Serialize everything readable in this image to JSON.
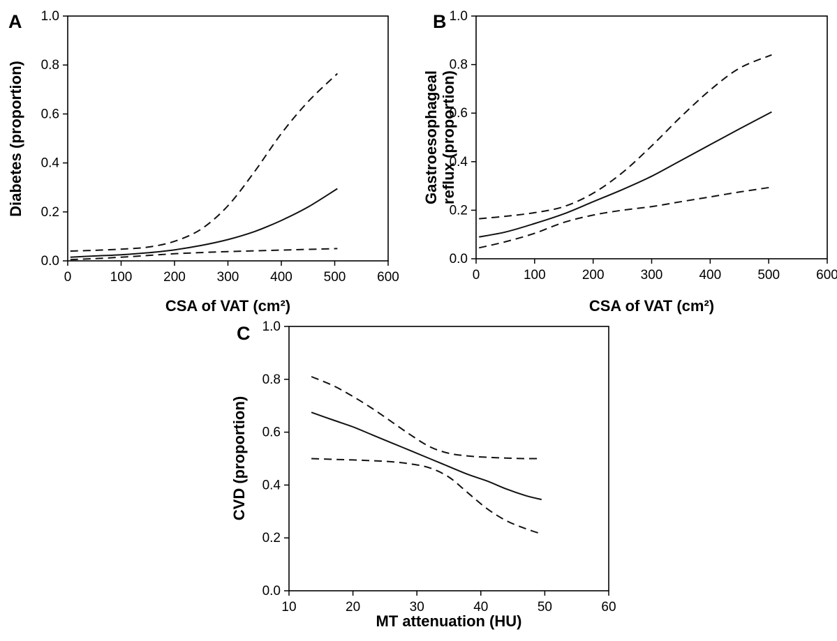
{
  "chart_data": [
    {
      "type": "line",
      "panel": "A",
      "xlabel": "CSA of VAT (cm²)",
      "ylabel": "Diabetes (proportion)",
      "xlim": [
        0,
        600
      ],
      "ylim": [
        0,
        1.0
      ],
      "xticks": [
        0,
        100,
        200,
        300,
        400,
        500,
        600
      ],
      "yticks": [
        0.0,
        0.2,
        0.4,
        0.6,
        0.8,
        1.0
      ],
      "x": [
        5,
        50,
        100,
        150,
        200,
        250,
        300,
        350,
        400,
        450,
        505
      ],
      "series": [
        {
          "style": "solid",
          "values": [
            0.015,
            0.02,
            0.025,
            0.033,
            0.045,
            0.063,
            0.087,
            0.12,
            0.165,
            0.22,
            0.295
          ]
        },
        {
          "style": "dashed",
          "values": [
            0.04,
            0.043,
            0.048,
            0.056,
            0.08,
            0.13,
            0.225,
            0.365,
            0.52,
            0.65,
            0.765
          ]
        },
        {
          "style": "dashed",
          "values": [
            0.005,
            0.009,
            0.015,
            0.022,
            0.029,
            0.034,
            0.038,
            0.041,
            0.044,
            0.047,
            0.05
          ]
        }
      ]
    },
    {
      "type": "line",
      "panel": "B",
      "xlabel": "CSA of VAT (cm²)",
      "ylabel": "Gastroesophageal reflux (proportion)",
      "xlim": [
        0,
        600
      ],
      "ylim": [
        0,
        1.0
      ],
      "xticks": [
        0,
        100,
        200,
        300,
        400,
        500,
        600
      ],
      "yticks": [
        0.0,
        0.2,
        0.4,
        0.6,
        0.8,
        1.0
      ],
      "x": [
        5,
        50,
        100,
        150,
        200,
        250,
        300,
        350,
        400,
        450,
        505
      ],
      "series": [
        {
          "style": "solid",
          "values": [
            0.09,
            0.11,
            0.145,
            0.185,
            0.235,
            0.285,
            0.34,
            0.405,
            0.47,
            0.535,
            0.605
          ]
        },
        {
          "style": "dashed",
          "values": [
            0.165,
            0.175,
            0.19,
            0.215,
            0.27,
            0.355,
            0.465,
            0.585,
            0.695,
            0.785,
            0.84
          ]
        },
        {
          "style": "dashed",
          "values": [
            0.045,
            0.07,
            0.105,
            0.15,
            0.18,
            0.2,
            0.215,
            0.235,
            0.255,
            0.275,
            0.295
          ]
        }
      ]
    },
    {
      "type": "line",
      "panel": "C",
      "xlabel": "MT attenuation (HU)",
      "ylabel": "CVD (proportion)",
      "xlim": [
        10,
        60
      ],
      "ylim": [
        0,
        1.0
      ],
      "xticks": [
        10,
        20,
        30,
        40,
        50,
        60
      ],
      "yticks": [
        0.0,
        0.2,
        0.4,
        0.6,
        0.8,
        1.0
      ],
      "x": [
        13.5,
        17,
        20,
        23,
        26,
        29,
        32,
        35,
        38,
        41,
        44,
        47,
        49.5
      ],
      "series": [
        {
          "style": "solid",
          "values": [
            0.675,
            0.645,
            0.62,
            0.59,
            0.56,
            0.53,
            0.5,
            0.47,
            0.44,
            0.415,
            0.385,
            0.36,
            0.345
          ]
        },
        {
          "style": "dashed",
          "values": [
            0.81,
            0.775,
            0.735,
            0.69,
            0.64,
            0.59,
            0.545,
            0.52,
            0.51,
            0.505,
            0.502,
            0.5,
            0.5
          ]
        },
        {
          "style": "dashed",
          "values": [
            0.5,
            0.497,
            0.495,
            0.492,
            0.488,
            0.48,
            0.465,
            0.43,
            0.37,
            0.31,
            0.265,
            0.235,
            0.215
          ]
        }
      ]
    }
  ]
}
